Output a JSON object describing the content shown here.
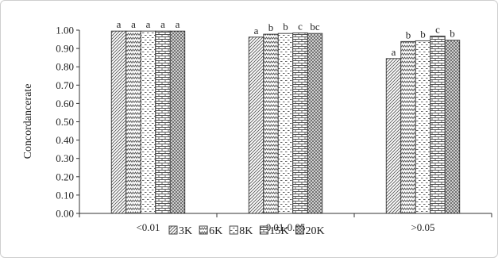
{
  "chart_data": {
    "type": "bar",
    "title": "",
    "xlabel": "",
    "ylabel": "Concordancerate",
    "ylim": [
      0,
      1.0
    ],
    "yticks": [
      "0.00",
      "0.10",
      "0.20",
      "0.30",
      "0.40",
      "0.50",
      "0.60",
      "0.70",
      "0.80",
      "0.90",
      "1.00"
    ],
    "grid": false,
    "legend_position": "bottom",
    "categories": [
      "<0.01",
      "0.01-0.05",
      ">0.05"
    ],
    "series": [
      {
        "name": "3K",
        "pattern": "diag",
        "values": [
          0.995,
          0.962,
          0.845
        ],
        "letters": [
          "a",
          "a",
          "a"
        ]
      },
      {
        "name": "6K",
        "pattern": "zigzag",
        "values": [
          0.995,
          0.978,
          0.938
        ],
        "letters": [
          "a",
          "b",
          "b"
        ]
      },
      {
        "name": "8K",
        "pattern": "dash",
        "values": [
          0.995,
          0.982,
          0.942
        ],
        "letters": [
          "a",
          "b",
          "b"
        ]
      },
      {
        "name": "15K",
        "pattern": "brick",
        "values": [
          0.995,
          0.985,
          0.968
        ],
        "letters": [
          "a",
          "c",
          "c"
        ]
      },
      {
        "name": "20K",
        "pattern": "dots",
        "values": [
          0.995,
          0.982,
          0.945
        ],
        "letters": [
          "a",
          "bc",
          "b"
        ]
      }
    ]
  }
}
